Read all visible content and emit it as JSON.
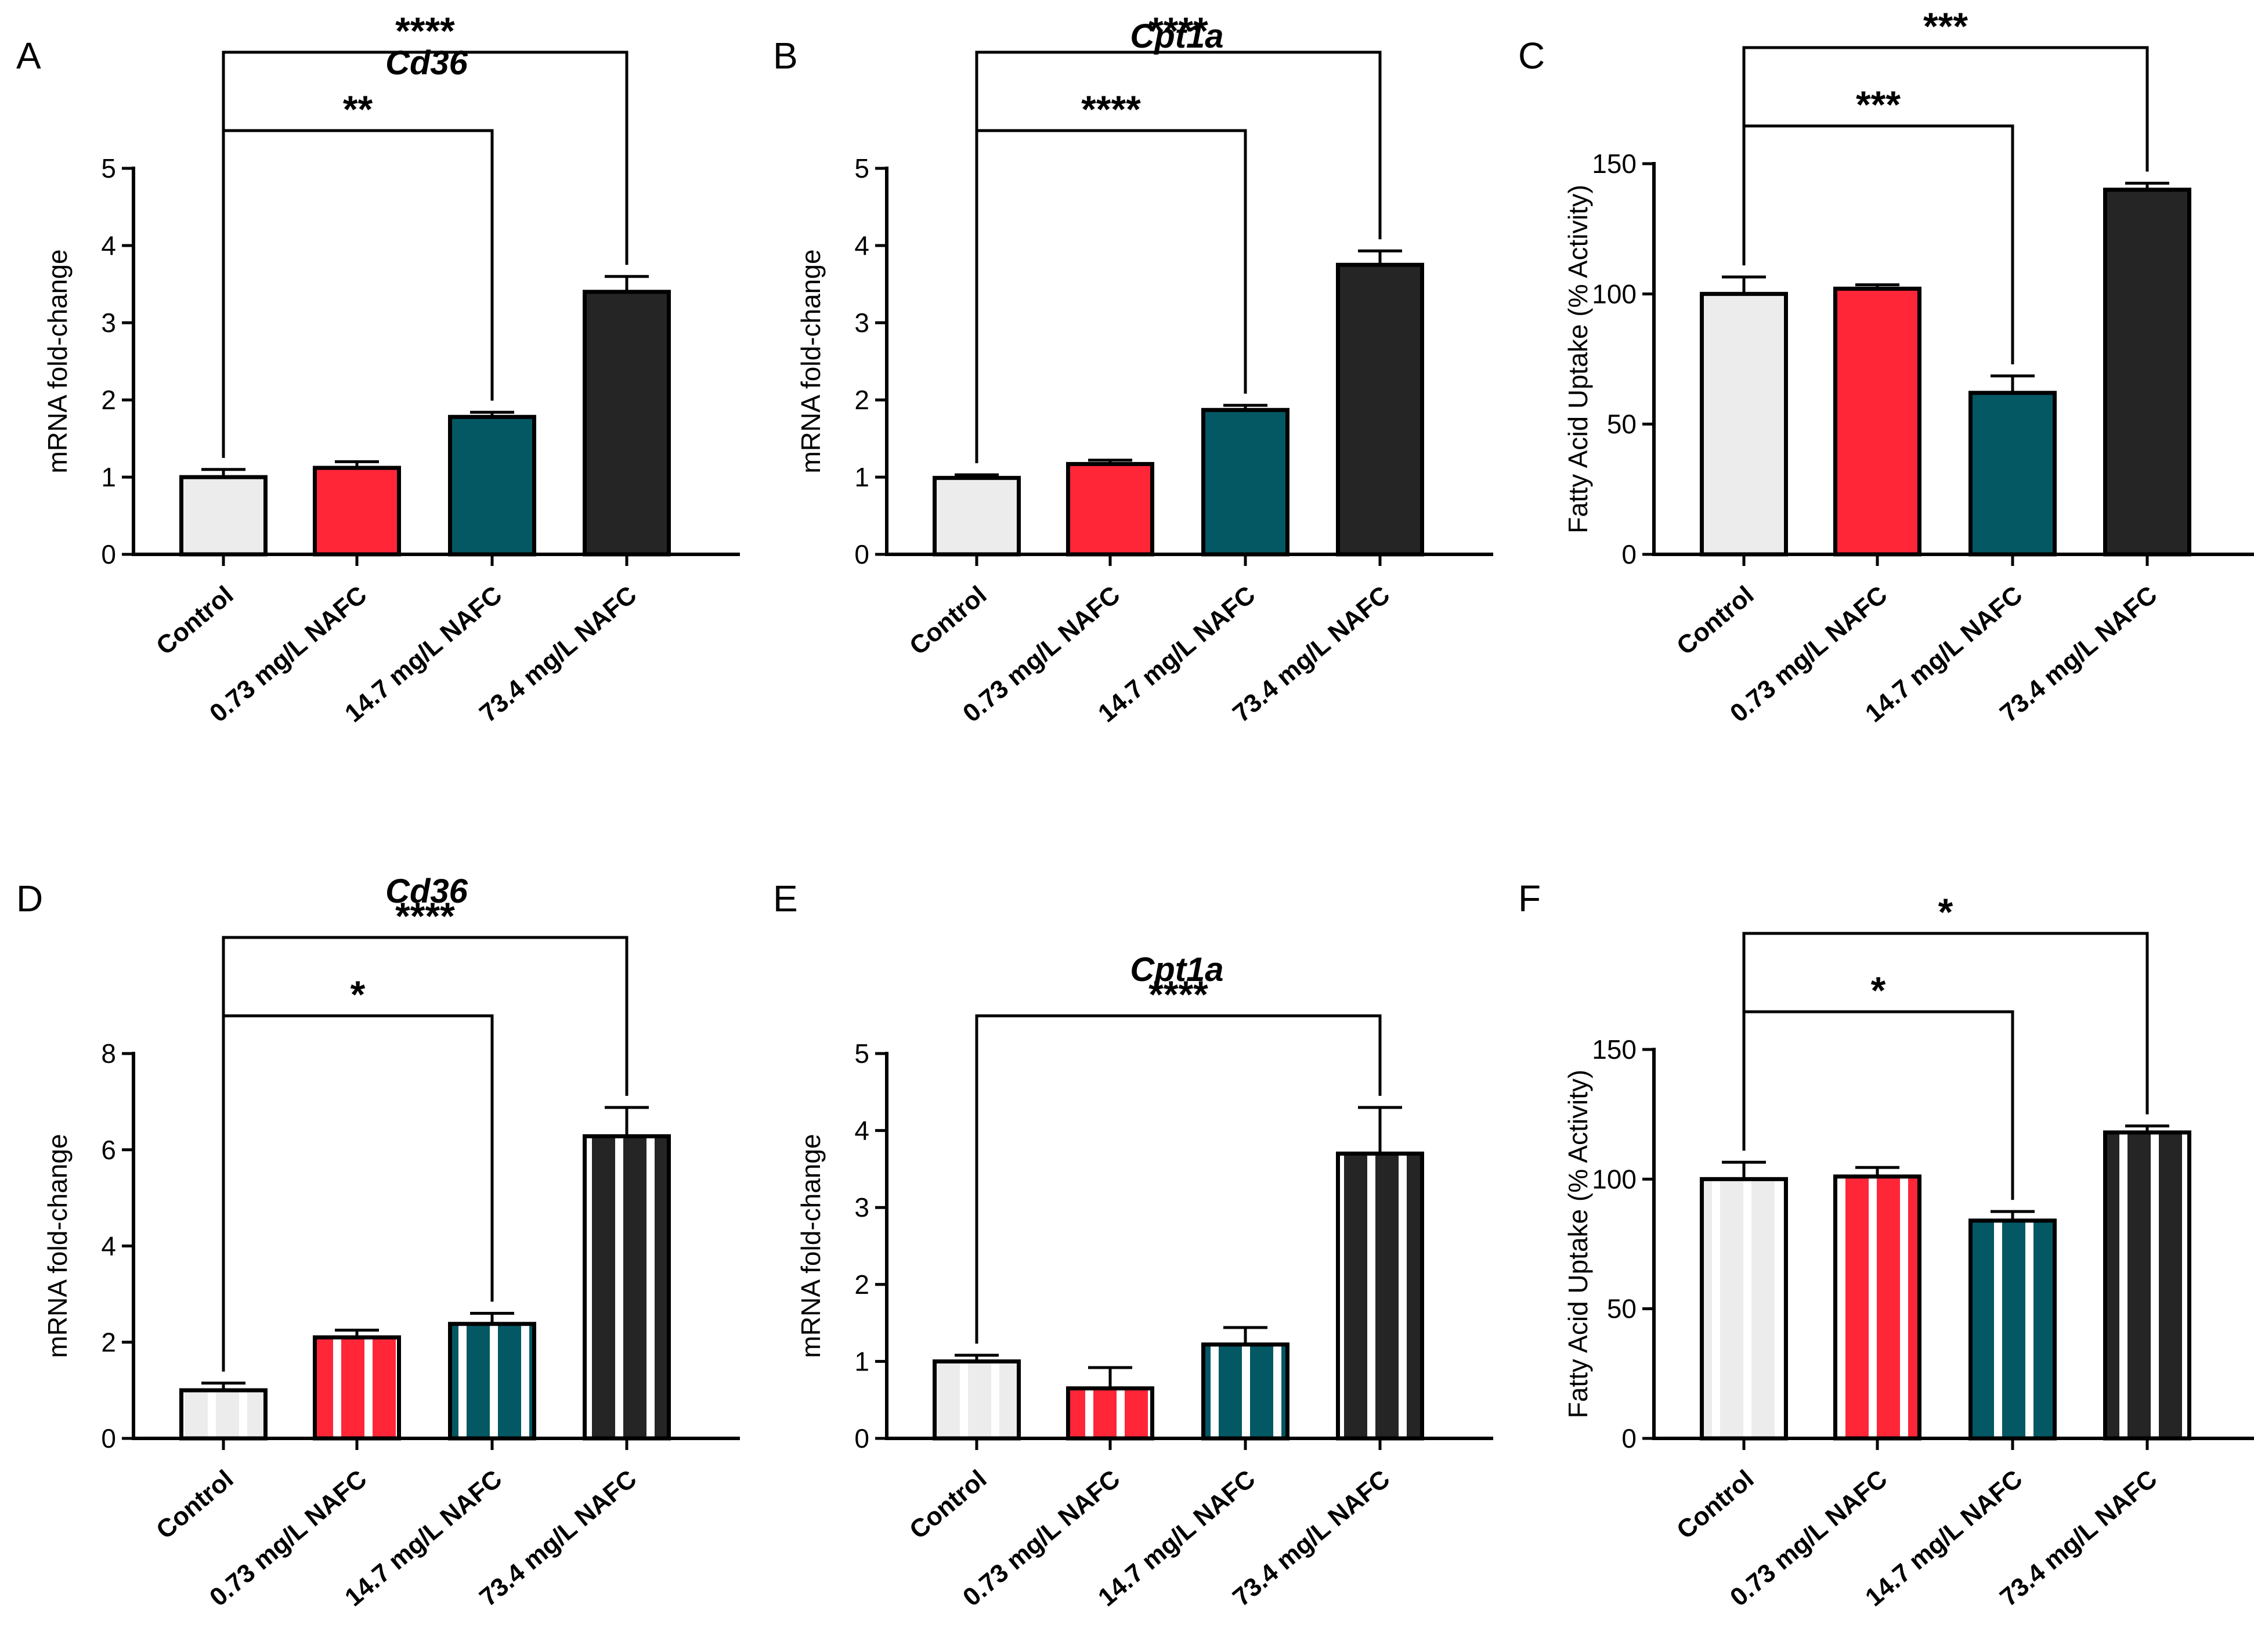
{
  "chart_data": [
    {
      "panel": "A",
      "type": "bar",
      "title": "Cd36",
      "ylabel": "mRNA fold-change",
      "ylim": [
        0,
        5
      ],
      "yticks": [
        0,
        1,
        2,
        3,
        4,
        5
      ],
      "categories": [
        "Control",
        "0.73 mg/L NAFC",
        "14.7 mg/L NAFC",
        "73.4 mg/L NAFC"
      ],
      "values": [
        1.0,
        1.12,
        1.78,
        3.4
      ],
      "errors": [
        0.1,
        0.08,
        0.06,
        0.2
      ],
      "pattern": "solid",
      "comparisons": [
        {
          "from": 0,
          "to": 2,
          "label": "**",
          "level": 1
        },
        {
          "from": 0,
          "to": 3,
          "label": "****",
          "level": 2
        }
      ]
    },
    {
      "panel": "B",
      "type": "bar",
      "title": "Cpt1a",
      "ylabel": "mRNA fold-change",
      "ylim": [
        0,
        5
      ],
      "yticks": [
        0,
        1,
        2,
        3,
        4,
        5
      ],
      "categories": [
        "Control",
        "0.73 mg/L NAFC",
        "14.7 mg/L NAFC",
        "73.4 mg/L NAFC"
      ],
      "values": [
        0.99,
        1.17,
        1.87,
        3.75
      ],
      "errors": [
        0.04,
        0.05,
        0.06,
        0.18
      ],
      "pattern": "solid",
      "comparisons": [
        {
          "from": 0,
          "to": 2,
          "label": "****",
          "level": 1
        },
        {
          "from": 0,
          "to": 3,
          "label": "****",
          "level": 2
        }
      ]
    },
    {
      "panel": "C",
      "type": "bar",
      "title": "",
      "ylabel": "Fatty Acid Uptake (% Activity)",
      "ylim": [
        0,
        150
      ],
      "yticks": [
        0,
        50,
        100,
        150
      ],
      "categories": [
        "Control",
        "0.73 mg/L NAFC",
        "14.7 mg/L NAFC",
        "73.4 mg/L NAFC"
      ],
      "values": [
        100,
        102,
        62,
        140
      ],
      "errors": [
        6.5,
        1.5,
        6.5,
        2.5
      ],
      "pattern": "solid",
      "comparisons": [
        {
          "from": 0,
          "to": 2,
          "label": "***",
          "level": 1
        },
        {
          "from": 0,
          "to": 3,
          "label": "***",
          "level": 2
        }
      ]
    },
    {
      "panel": "D",
      "type": "bar",
      "title": "Cd36",
      "ylabel": "mRNA fold-change",
      "ylim": [
        0,
        8
      ],
      "yticks": [
        0,
        2,
        4,
        6,
        8
      ],
      "categories": [
        "Control",
        "0.73 mg/L NAFC",
        "14.7 mg/L NAFC",
        "73.4 mg/L NAFC"
      ],
      "values": [
        1.0,
        2.1,
        2.38,
        6.28
      ],
      "errors": [
        0.15,
        0.15,
        0.22,
        0.6
      ],
      "pattern": "striped",
      "comparisons": [
        {
          "from": 0,
          "to": 2,
          "label": "*",
          "level": 1
        },
        {
          "from": 0,
          "to": 3,
          "label": "****",
          "level": 2
        }
      ]
    },
    {
      "panel": "E",
      "type": "bar",
      "title": "Cpt1a",
      "ylabel": "mRNA fold-change",
      "ylim": [
        0,
        5
      ],
      "yticks": [
        0,
        1,
        2,
        3,
        4,
        5
      ],
      "categories": [
        "Control",
        "0.73 mg/L NAFC",
        "14.7 mg/L NAFC",
        "73.4 mg/L NAFC"
      ],
      "values": [
        1.0,
        0.65,
        1.22,
        3.7
      ],
      "errors": [
        0.08,
        0.27,
        0.22,
        0.6
      ],
      "pattern": "striped",
      "comparisons": [
        {
          "from": 0,
          "to": 3,
          "label": "****",
          "level": 1
        }
      ]
    },
    {
      "panel": "F",
      "type": "bar",
      "title": "",
      "ylabel": "Fatty Acid Uptake (% Activity)",
      "ylim": [
        0,
        150
      ],
      "yticks": [
        0,
        50,
        100,
        150
      ],
      "categories": [
        "Control",
        "0.73 mg/L NAFC",
        "14.7 mg/L NAFC",
        "73.4 mg/L NAFC"
      ],
      "values": [
        100,
        101,
        84,
        118
      ],
      "errors": [
        6.5,
        3.5,
        3.5,
        2.5
      ],
      "pattern": "striped",
      "comparisons": [
        {
          "from": 0,
          "to": 2,
          "label": "*",
          "level": 1
        },
        {
          "from": 0,
          "to": 3,
          "label": "*",
          "level": 2
        }
      ]
    }
  ],
  "colors": {
    "bars": [
      "#ececec",
      "#ff2638",
      "#035864",
      "#252525"
    ],
    "stripe": "#ffffff",
    "axis": "#000000"
  }
}
